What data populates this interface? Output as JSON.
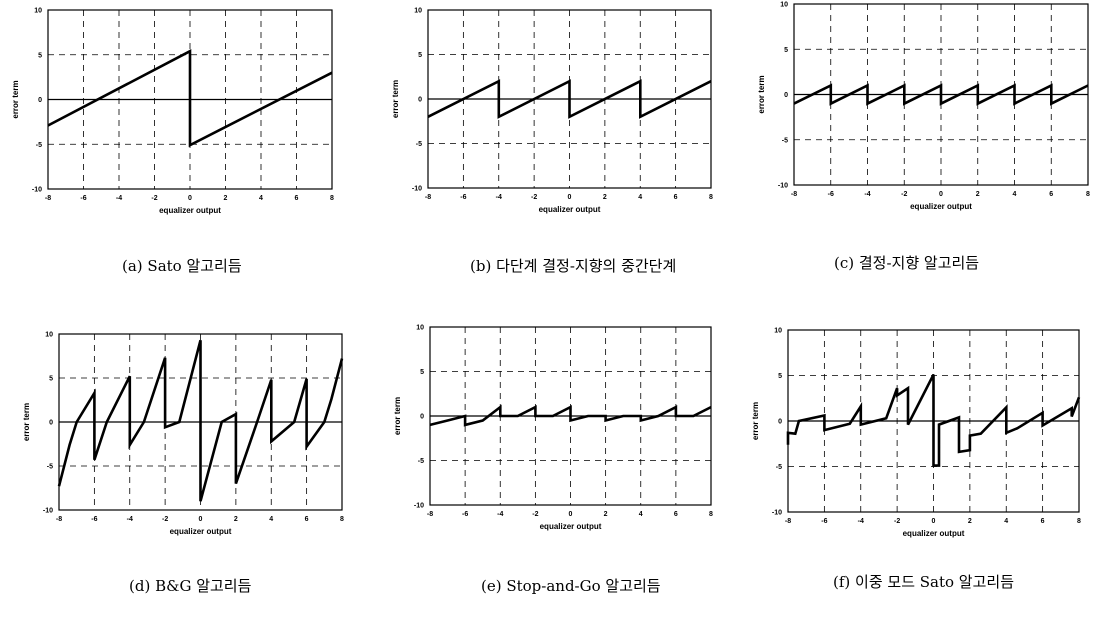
{
  "chart_data": [
    {
      "id": "a",
      "type": "line",
      "caption": "(a) Sato 알고리듬",
      "xlabel": "equalizer output",
      "ylabel": "error term",
      "xlim": [
        -8,
        8
      ],
      "ylim": [
        -10,
        10
      ],
      "xticks": [
        -8,
        -6,
        -4,
        -2,
        0,
        2,
        4,
        6,
        8
      ],
      "yticks": [
        -10,
        -5,
        0,
        5,
        10
      ],
      "grid": true,
      "series": [
        {
          "x": [
            -8,
            0,
            0,
            8
          ],
          "y": [
            -2.9,
            5.4,
            -5.1,
            3.0
          ]
        }
      ]
    },
    {
      "id": "b",
      "type": "line",
      "caption": "(b) 다단계 결정-지향의 중간단계",
      "xlabel": "equalizer output",
      "ylabel": "error term",
      "xlim": [
        -8,
        8
      ],
      "ylim": [
        -10,
        10
      ],
      "xticks": [
        -8,
        -6,
        -4,
        -2,
        0,
        2,
        4,
        6,
        8
      ],
      "yticks": [
        -10,
        -5,
        0,
        5,
        10
      ],
      "grid": true,
      "series": [
        {
          "x": [
            -8,
            -4,
            -4,
            0,
            0,
            4,
            4,
            8
          ],
          "y": [
            -2,
            2,
            -2,
            2,
            -2,
            2,
            -2,
            2
          ]
        }
      ]
    },
    {
      "id": "c",
      "type": "line",
      "caption": "(c) 결정-지향 알고리듬",
      "xlabel": "equalizer output",
      "ylabel": "error term",
      "xlim": [
        -8,
        8
      ],
      "ylim": [
        -10,
        10
      ],
      "xticks": [
        -8,
        -6,
        -4,
        -2,
        0,
        2,
        4,
        6,
        8
      ],
      "yticks": [
        -10,
        -5,
        0,
        5,
        10
      ],
      "grid": true,
      "series": [
        {
          "x": [
            -8,
            -6,
            -6,
            -4,
            -4,
            -2,
            -2,
            0,
            0,
            2,
            2,
            4,
            4,
            6,
            6,
            8
          ],
          "y": [
            -1,
            1,
            -1,
            1,
            -1,
            1,
            -1,
            1,
            -1,
            1,
            -1,
            1,
            -1,
            1,
            -1,
            1
          ]
        }
      ]
    },
    {
      "id": "d",
      "type": "line",
      "caption": "(d) B&G 알고리듬",
      "xlabel": "equalizer output",
      "ylabel": "error term",
      "xlim": [
        -8,
        8
      ],
      "ylim": [
        -10,
        10
      ],
      "xticks": [
        -8,
        -6,
        -4,
        -2,
        0,
        2,
        4,
        6,
        8
      ],
      "yticks": [
        -10,
        -5,
        0,
        5,
        10
      ],
      "grid": true,
      "series": [
        {
          "x": [
            -8,
            -7.4,
            -7,
            -6,
            -6,
            -5.3,
            -4,
            -4,
            -3.2,
            -2,
            -2,
            -1.2,
            0,
            0,
            1.2,
            2,
            2,
            3.2,
            4,
            4,
            5.3,
            6,
            6,
            7,
            7.4,
            8
          ],
          "y": [
            -7.3,
            -2.6,
            0,
            3.3,
            -4.3,
            0,
            5.2,
            -2.6,
            0,
            7.3,
            -0.6,
            0,
            9.3,
            -9.0,
            0,
            0.9,
            -7.0,
            0,
            4.8,
            -2.2,
            0,
            4.9,
            -2.8,
            0,
            2.6,
            7.2
          ]
        }
      ]
    },
    {
      "id": "e",
      "type": "line",
      "caption": "(e) Stop-and-Go 알고리듬",
      "xlabel": "equalizer output",
      "ylabel": "error term",
      "xlim": [
        -8,
        8
      ],
      "ylim": [
        -10,
        10
      ],
      "xticks": [
        -8,
        -6,
        -4,
        -2,
        0,
        2,
        4,
        6,
        8
      ],
      "yticks": [
        -10,
        -5,
        0,
        5,
        10
      ],
      "grid": true,
      "series": [
        {
          "x": [
            -8,
            -7,
            -6,
            -6,
            -5,
            -4,
            -4,
            -3,
            -2,
            -2,
            -1,
            0,
            0,
            1,
            2,
            2,
            3,
            4,
            4,
            5,
            6,
            6,
            7,
            8
          ],
          "y": [
            -1,
            -0.5,
            0,
            -1,
            -0.5,
            1,
            0,
            0,
            1,
            0,
            0,
            1,
            -0.5,
            0,
            0,
            -0.5,
            0,
            0,
            -0.5,
            0,
            1,
            0,
            0,
            1
          ]
        }
      ]
    },
    {
      "id": "f",
      "type": "line",
      "caption": "(f) 이중 모드 Sato 알고리듬",
      "xlabel": "equalizer output",
      "ylabel": "error term",
      "xlim": [
        -8,
        8
      ],
      "ylim": [
        -10,
        10
      ],
      "xticks": [
        -8,
        -6,
        -4,
        -2,
        0,
        2,
        4,
        6,
        8
      ],
      "yticks": [
        -10,
        -5,
        0,
        5,
        10
      ],
      "grid": true,
      "series": [
        {
          "x": [
            -8,
            -8,
            -7.6,
            -7.4,
            -6,
            -6,
            -4.6,
            -4,
            -4,
            -2.6,
            -2,
            -2,
            -1.4,
            -1.4,
            0,
            0,
            0.3,
            0.3,
            1.4,
            1.4,
            2,
            2,
            2.6,
            4,
            4,
            4.6,
            6,
            6,
            7.6,
            7.6,
            8
          ],
          "y": [
            -2.6,
            -1.3,
            -1.4,
            0,
            0.6,
            -1,
            -0.3,
            1.6,
            -0.4,
            0.3,
            3.6,
            2.8,
            3.6,
            -0.4,
            5.1,
            -4.9,
            -4.9,
            -0.4,
            0.4,
            -3.4,
            -3.2,
            -1.6,
            -1.4,
            1.5,
            -1.3,
            -0.8,
            0.9,
            -0.5,
            1.4,
            0.5,
            2.6
          ]
        }
      ]
    }
  ]
}
